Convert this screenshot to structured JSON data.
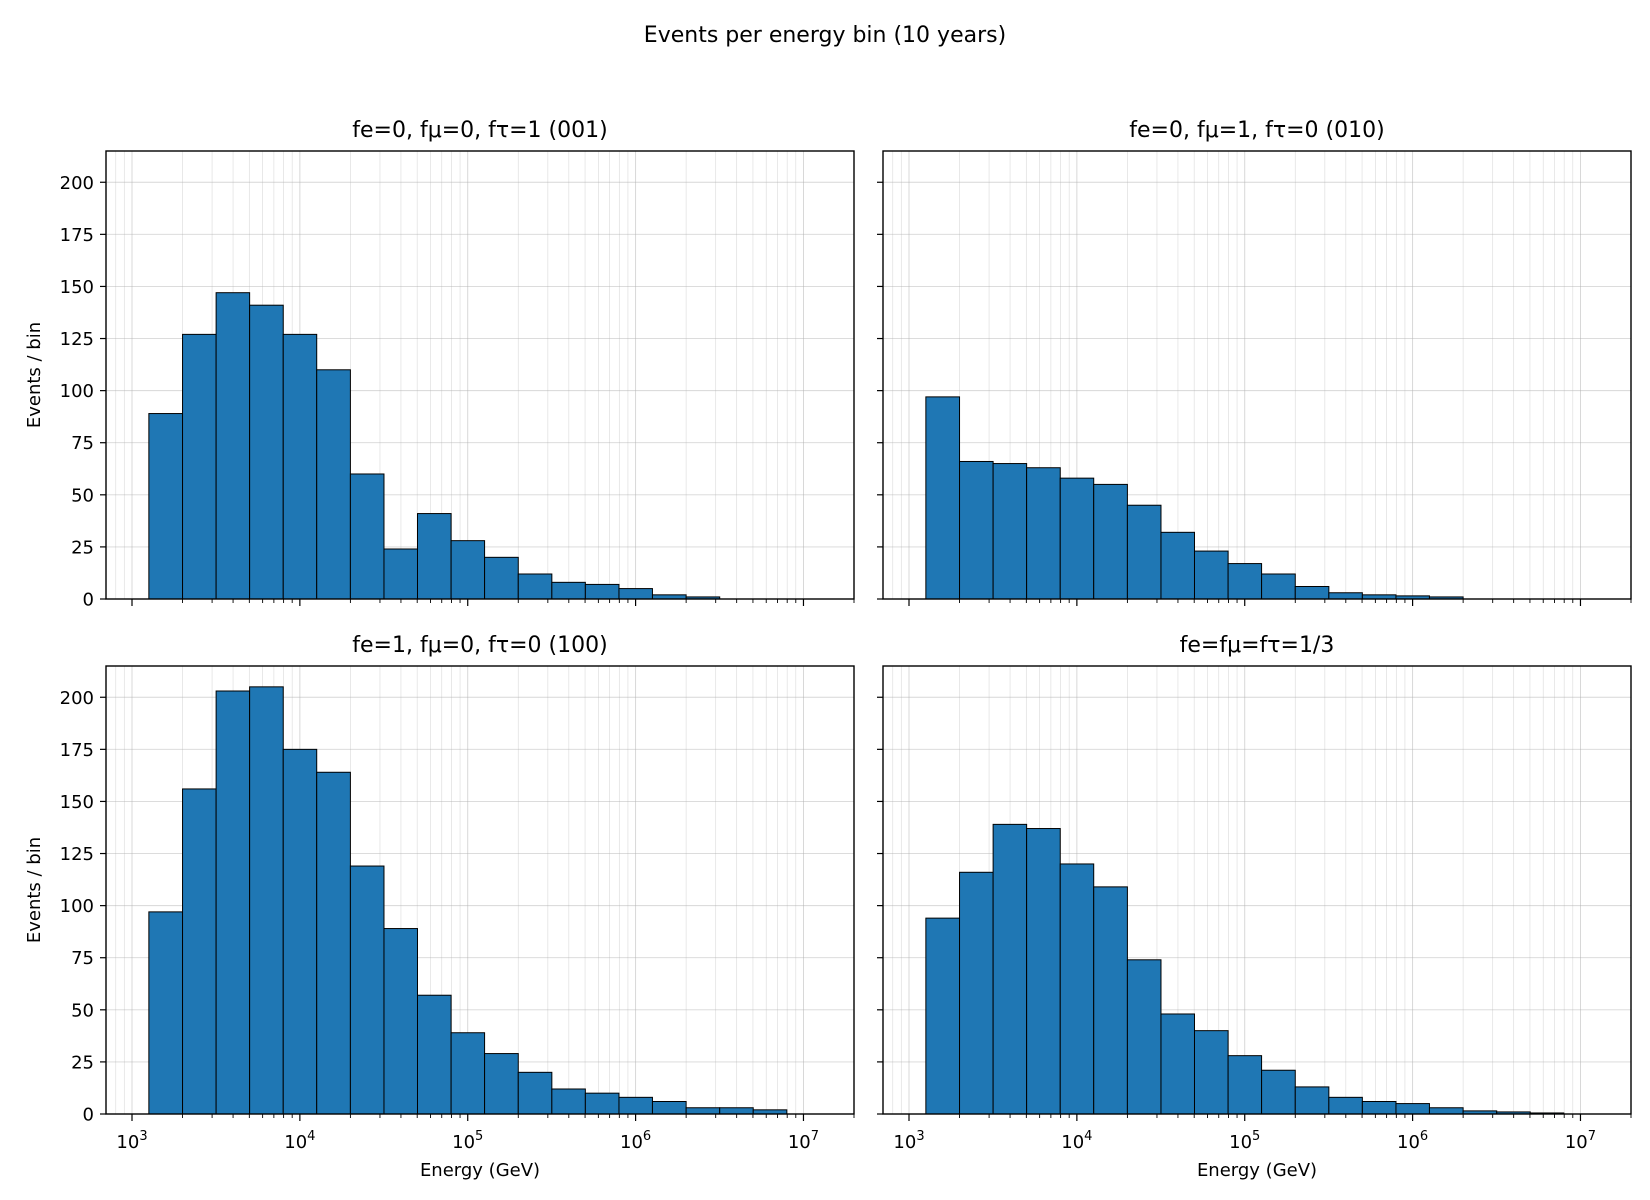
{
  "figure_title": "Events per energy bin (10 years)",
  "colors": {
    "bar_fill": "#1f77b4",
    "bar_edge": "#000000",
    "grid": "#b0b0b0"
  },
  "chart_data": [
    {
      "type": "bar",
      "title": "fe=0, fμ=0, fτ=1 (001)",
      "xlabel": "",
      "ylabel": "Events / bin",
      "xscale": "log",
      "xlim": [
        700,
        20000000
      ],
      "ylim": [
        0,
        215
      ],
      "yticks": [
        0,
        25,
        50,
        75,
        100,
        125,
        150,
        175,
        200
      ],
      "xticks": [
        "10^3",
        "10^4",
        "10^5",
        "10^6",
        "10^7"
      ],
      "grid": true,
      "bin_edges": [
        1260,
        2000,
        3170,
        5020,
        7960,
        12600,
        20000,
        31700,
        50200,
        79600,
        126000,
        200000,
        317000,
        502000,
        796000,
        1260000,
        2000000,
        3170000,
        5020000,
        7960000
      ],
      "values": [
        89,
        127,
        147,
        141,
        127,
        110,
        60,
        24,
        41,
        28,
        20,
        12,
        8,
        7,
        5,
        2,
        1,
        0,
        0
      ]
    },
    {
      "type": "bar",
      "title": "fe=0, fμ=1, fτ=0 (010)",
      "xlabel": "",
      "ylabel": "",
      "xscale": "log",
      "xlim": [
        700,
        20000000
      ],
      "ylim": [
        0,
        215
      ],
      "yticks": [
        0,
        25,
        50,
        75,
        100,
        125,
        150,
        175,
        200
      ],
      "xticks": [
        "10^3",
        "10^4",
        "10^5",
        "10^6",
        "10^7"
      ],
      "grid": true,
      "bin_edges": [
        1260,
        2000,
        3170,
        5020,
        7960,
        12600,
        20000,
        31700,
        50200,
        79600,
        126000,
        200000,
        317000,
        502000,
        796000,
        1260000,
        2000000,
        3170000,
        5020000,
        7960000
      ],
      "values": [
        97,
        66,
        65,
        63,
        58,
        55,
        45,
        32,
        23,
        17,
        12,
        6,
        3,
        2,
        1.5,
        1,
        0,
        0,
        0
      ]
    },
    {
      "type": "bar",
      "title": "fe=1, fμ=0, fτ=0 (100)",
      "xlabel": "Energy (GeV)",
      "ylabel": "Events / bin",
      "xscale": "log",
      "xlim": [
        700,
        20000000
      ],
      "ylim": [
        0,
        215
      ],
      "yticks": [
        0,
        25,
        50,
        75,
        100,
        125,
        150,
        175,
        200
      ],
      "xticks": [
        "10^3",
        "10^4",
        "10^5",
        "10^6",
        "10^7"
      ],
      "grid": true,
      "bin_edges": [
        1260,
        2000,
        3170,
        5020,
        7960,
        12600,
        20000,
        31700,
        50200,
        79600,
        126000,
        200000,
        317000,
        502000,
        796000,
        1260000,
        2000000,
        3170000,
        5020000,
        7960000
      ],
      "values": [
        97,
        156,
        203,
        205,
        175,
        164,
        119,
        89,
        57,
        39,
        29,
        20,
        12,
        10,
        8,
        6,
        3,
        3,
        2
      ]
    },
    {
      "type": "bar",
      "title": "fe=fμ=fτ=1/3",
      "xlabel": "Energy (GeV)",
      "ylabel": "",
      "xscale": "log",
      "xlim": [
        700,
        20000000
      ],
      "ylim": [
        0,
        215
      ],
      "yticks": [
        0,
        25,
        50,
        75,
        100,
        125,
        150,
        175,
        200
      ],
      "xticks": [
        "10^3",
        "10^4",
        "10^5",
        "10^6",
        "10^7"
      ],
      "grid": true,
      "bin_edges": [
        1260,
        2000,
        3170,
        5020,
        7960,
        12600,
        20000,
        31700,
        50200,
        79600,
        126000,
        200000,
        317000,
        502000,
        796000,
        1260000,
        2000000,
        3170000,
        5020000,
        7960000
      ],
      "values": [
        94,
        116,
        139,
        137,
        120,
        109,
        74,
        48,
        40,
        28,
        21,
        13,
        8,
        6,
        5,
        3,
        1.5,
        1,
        0.5
      ]
    }
  ]
}
